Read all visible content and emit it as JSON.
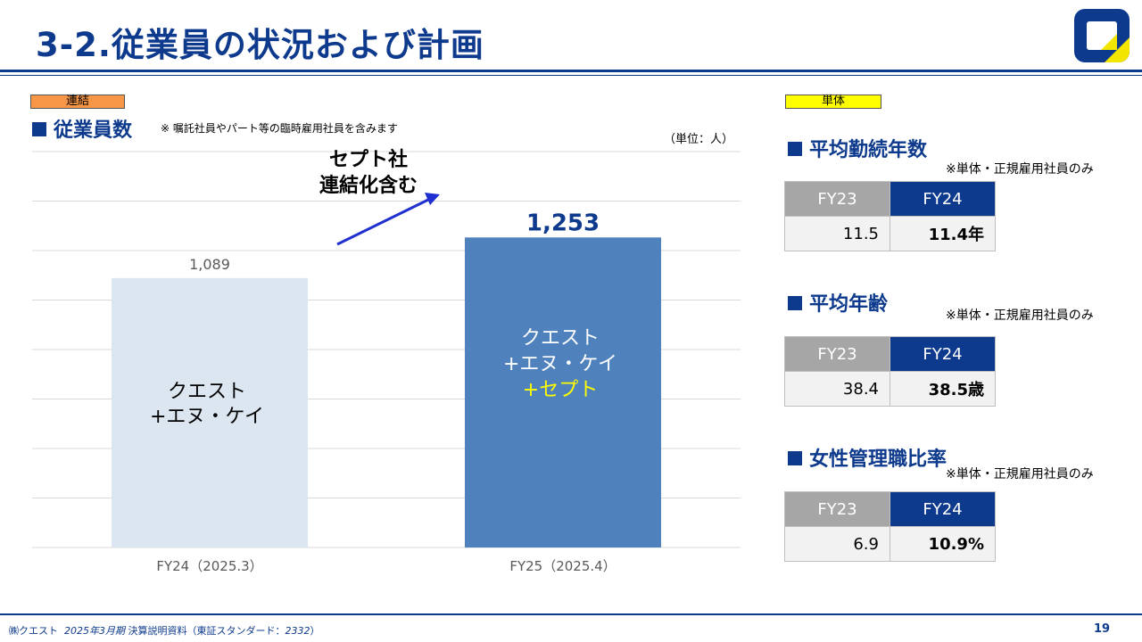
{
  "header": {
    "title": "3-2.従業員の状況および計画"
  },
  "left_panel": {
    "tag": "連結",
    "heading": "従業員数",
    "note": "※ 嘱託社員やパート等の臨時雇用社員を含みます",
    "unit": "（単位：人）",
    "annotation_line1": "セプト社",
    "annotation_line2": "連結化含む"
  },
  "chart_data": {
    "type": "bar",
    "categories": [
      "FY24（2025.3）",
      "FY25（2025.4）"
    ],
    "values": [
      1089,
      1253
    ],
    "value_labels": [
      "1,089",
      "1,253"
    ],
    "ylim": [
      0,
      1600
    ],
    "gridlines": [
      0,
      200,
      400,
      600,
      800,
      1000,
      1200,
      1400,
      1600
    ],
    "bar_colors": [
      "#dce6f1",
      "#4f81bd"
    ],
    "bar_label_0": {
      "line1": "クエスト",
      "line2": "+エヌ・ケイ"
    },
    "bar_label_1": {
      "line1": "クエスト",
      "line2": "+エヌ・ケイ",
      "line3": "+セプト"
    },
    "value_label_colors": [
      "#595959",
      "#0d3a8c"
    ],
    "highlight_color": "#ffff00"
  },
  "right_panel": {
    "tag": "単体",
    "stats": [
      {
        "heading": "平均勤続年数",
        "note": "※単体・正規雇用社員のみ",
        "col1": "FY23",
        "col2": "FY24",
        "val1": "11.5",
        "val2": "11.4年"
      },
      {
        "heading": "平均年齢",
        "note": "※単体・正規雇用社員のみ",
        "col1": "FY23",
        "col2": "FY24",
        "val1": "38.4",
        "val2": "38.5歳"
      },
      {
        "heading": "女性管理職比率",
        "note": "※単体・正規雇用社員のみ",
        "col1": "FY23",
        "col2": "FY24",
        "val1": "6.9",
        "val2": "10.9%"
      }
    ]
  },
  "footer": {
    "company": "㈱クエスト",
    "period": "2025年3月期",
    "doc": "決算説明資料（東証スタンダード：",
    "code": "2332",
    "close": "）",
    "page": "19"
  },
  "colors": {
    "brand": "#0d3a8c",
    "accent_yellow": "#ffff00",
    "accent_orange": "#f79646"
  }
}
